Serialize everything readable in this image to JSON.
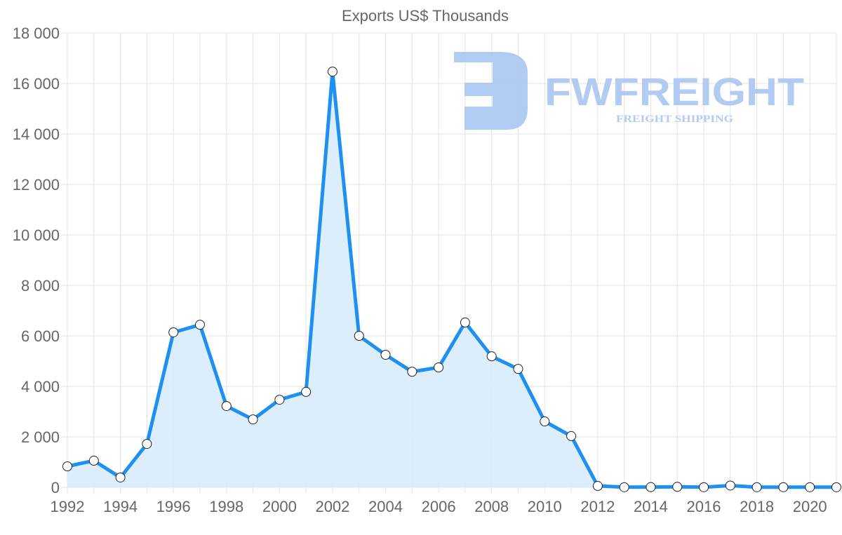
{
  "chart_data": {
    "type": "line",
    "title": "Exports US$ Thousands",
    "xlabel": "",
    "ylabel": "",
    "x": [
      1992,
      1993,
      1994,
      1995,
      1996,
      1997,
      1998,
      1999,
      2000,
      2001,
      2002,
      2003,
      2004,
      2005,
      2006,
      2007,
      2008,
      2009,
      2010,
      2011,
      2012,
      2013,
      2014,
      2015,
      2016,
      2017,
      2018,
      2019,
      2020,
      2021
    ],
    "series": [
      {
        "name": "Exports US$ Thousands",
        "values": [
          830,
          1055,
          390,
          1720,
          6140,
          6440,
          3220,
          2690,
          3470,
          3780,
          16470,
          6000,
          5250,
          4580,
          4750,
          6530,
          5190,
          4690,
          2610,
          2030,
          55,
          5,
          10,
          20,
          5,
          70,
          5,
          5,
          5,
          5
        ]
      }
    ],
    "ylim": [
      0,
      18000
    ],
    "xlim": [
      1992,
      2021
    ],
    "yticks": [
      "0",
      "2 000",
      "4 000",
      "6 000",
      "8 000",
      "10 000",
      "12 000",
      "14 000",
      "16 000",
      "18 000"
    ],
    "xticks": [
      "1992",
      "1994",
      "1996",
      "1998",
      "2000",
      "2002",
      "2004",
      "2006",
      "2008",
      "2010",
      "2012",
      "2014",
      "2016",
      "2018",
      "2020"
    ],
    "grid": true,
    "fill": true,
    "colors": {
      "line": "#1e90f0",
      "fill": "#d8ebfc",
      "grid": "#e3e3e3",
      "watermark": "#a9c6f2"
    }
  },
  "watermark": {
    "brand": "FWFREIGHT",
    "tagline": "FREIGHT SHIPPING"
  }
}
